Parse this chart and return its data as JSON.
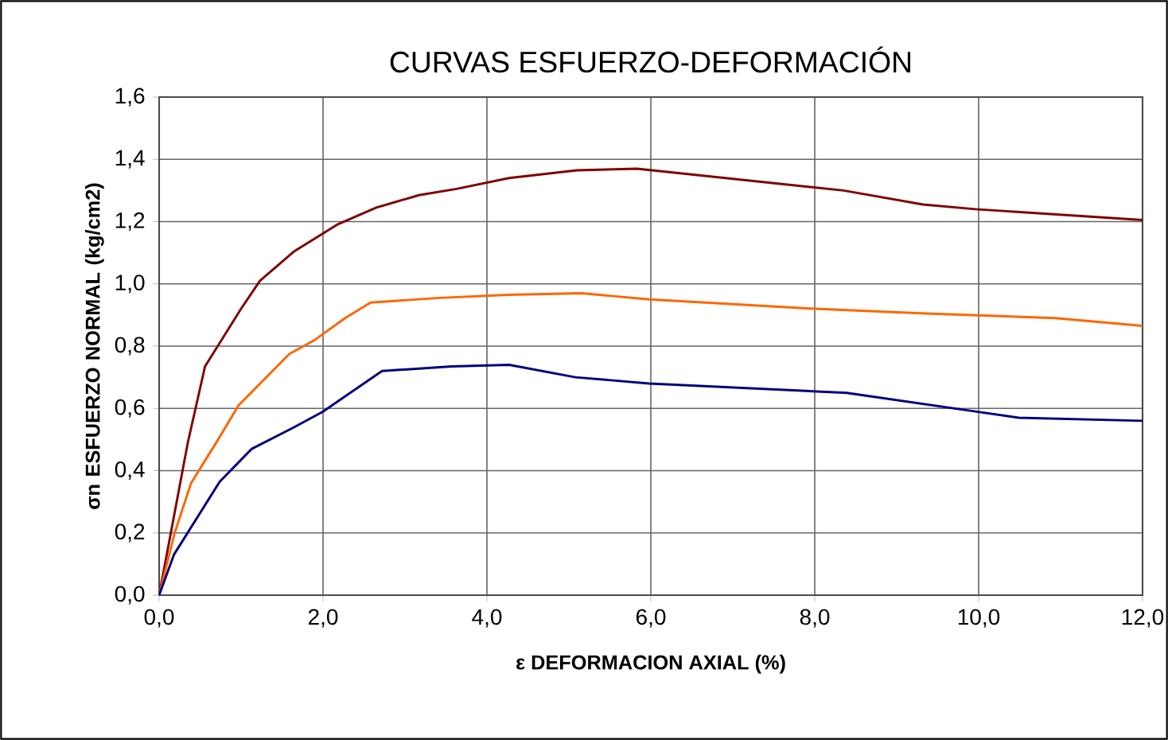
{
  "chart_data": {
    "type": "line",
    "title": "CURVAS ESFUERZO-DEFORMACIÓN",
    "xlabel": "ε  DEFORMACION AXIAL (%)",
    "ylabel": "σn   ESFUERZO NORMAL (kg/cm2)",
    "series": [
      {
        "color": "#800000",
        "x": [
          0,
          0.35,
          0.56,
          1.0,
          1.23,
          1.65,
          2.17,
          2.65,
          3.17,
          3.63,
          4.27,
          5.1,
          5.83,
          8.35,
          9.32,
          9.96,
          12.0
        ],
        "values": [
          0,
          0.49,
          0.735,
          0.92,
          1.01,
          1.105,
          1.19,
          1.245,
          1.285,
          1.305,
          1.34,
          1.365,
          1.37,
          1.3,
          1.255,
          1.24,
          1.205
        ]
      },
      {
        "color": "#ff6600",
        "x": [
          0,
          0.19,
          0.39,
          0.72,
          0.97,
          1.59,
          1.9,
          2.27,
          2.58,
          3.42,
          4.27,
          5.15,
          5.98,
          8.0,
          9.36,
          10.93,
          12.0
        ],
        "values": [
          0,
          0.2,
          0.36,
          0.5,
          0.61,
          0.775,
          0.82,
          0.89,
          0.94,
          0.955,
          0.965,
          0.97,
          0.95,
          0.92,
          0.905,
          0.89,
          0.865
        ]
      },
      {
        "color": "#000080",
        "x": [
          0,
          0.18,
          0.74,
          1.13,
          1.65,
          2.0,
          2.72,
          3.57,
          4.27,
          5.08,
          5.98,
          8.39,
          9.96,
          10.49,
          12.0
        ],
        "values": [
          0,
          0.13,
          0.365,
          0.47,
          0.54,
          0.59,
          0.72,
          0.735,
          0.74,
          0.7,
          0.68,
          0.65,
          0.59,
          0.57,
          0.56
        ]
      }
    ],
    "xlim": [
      0,
      12
    ],
    "ylim": [
      0,
      1.6
    ],
    "xticks": [
      {
        "value": 0,
        "label": "0,0"
      },
      {
        "value": 2,
        "label": "2,0"
      },
      {
        "value": 4,
        "label": "4,0"
      },
      {
        "value": 6,
        "label": "6,0"
      },
      {
        "value": 8,
        "label": "8,0"
      },
      {
        "value": 10,
        "label": "10,0"
      },
      {
        "value": 12,
        "label": "12,0"
      }
    ],
    "yticks": [
      {
        "value": 0,
        "label": "0,0"
      },
      {
        "value": 0.2,
        "label": "0,2"
      },
      {
        "value": 0.4,
        "label": "0,4"
      },
      {
        "value": 0.6,
        "label": "0,6"
      },
      {
        "value": 0.8,
        "label": "0,8"
      },
      {
        "value": 1.0,
        "label": "1,0"
      },
      {
        "value": 1.2,
        "label": "1,2"
      },
      {
        "value": 1.4,
        "label": "1,4"
      },
      {
        "value": 1.6,
        "label": "1,6"
      }
    ],
    "grid": true,
    "marker": "none",
    "line_style": "solid"
  }
}
